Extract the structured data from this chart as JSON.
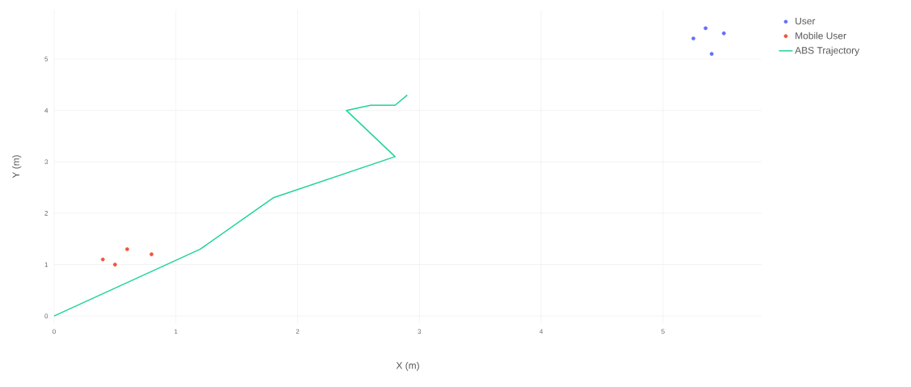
{
  "chart_data": {
    "type": "scatter",
    "xlabel": "X (m)",
    "ylabel": "Y (m)",
    "xlim": [
      0,
      5.81
    ],
    "ylim": [
      -0.14,
      5.96
    ],
    "xticks": [
      0,
      1,
      2,
      3,
      4,
      5
    ],
    "yticks": [
      0,
      1,
      2,
      3,
      4,
      5
    ],
    "grid": true,
    "legend": "top right",
    "series": [
      {
        "name": "User",
        "marker": "circle",
        "color": "#636efa",
        "x": [
          5.25,
          5.35,
          5.4,
          5.5
        ],
        "values": [
          5.4,
          5.6,
          5.1,
          5.5
        ]
      },
      {
        "name": "Mobile User",
        "marker": "circle",
        "color": "#ef553b",
        "x": [
          0.4,
          0.5,
          0.6,
          0.8
        ],
        "values": [
          1.1,
          1.0,
          1.3,
          1.2
        ]
      },
      {
        "name": "ABS Trajectory",
        "type": "line",
        "color": "#1fd39b",
        "x": [
          0,
          1.2,
          1.8,
          2.8,
          2.4,
          2.6,
          2.8,
          2.9
        ],
        "values": [
          0,
          1.3,
          2.3,
          3.1,
          4.0,
          4.1,
          4.1,
          4.3
        ]
      }
    ]
  }
}
